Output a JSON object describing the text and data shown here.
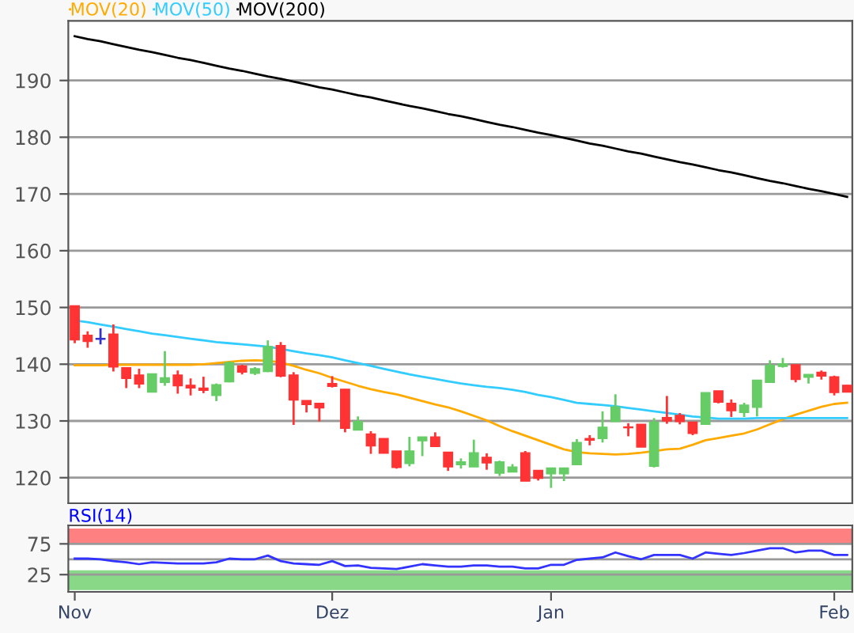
{
  "chart_data": [
    {
      "type": "candlestick",
      "categories": [
        null,
        null,
        null,
        null,
        null,
        null,
        null,
        null,
        null,
        null,
        null,
        null,
        null,
        null,
        null,
        null,
        null,
        null,
        null,
        null,
        null,
        null,
        null,
        null,
        null,
        null,
        null,
        null,
        null,
        null,
        null,
        null,
        null,
        null,
        null,
        null,
        null,
        null,
        null,
        null,
        null,
        null,
        null,
        null,
        null,
        null,
        null,
        null,
        null,
        null,
        null,
        null,
        null,
        null,
        null,
        null,
        null,
        null,
        null,
        null,
        null
      ],
      "ohlc": [
        [
          150.3,
          150.3,
          143.7,
          144.3
        ],
        [
          145.1,
          145.8,
          142.9,
          144.0
        ],
        [
          144.4,
          146.3,
          143.5,
          144.4
        ],
        [
          145.3,
          147.0,
          138.7,
          139.5
        ],
        [
          139.4,
          139.4,
          135.8,
          137.5
        ],
        [
          138.1,
          139.2,
          135.8,
          136.5
        ],
        [
          135.1,
          138.3,
          135.1,
          138.3
        ],
        [
          136.8,
          142.3,
          136.2,
          137.6
        ],
        [
          138.1,
          138.9,
          134.8,
          136.2
        ],
        [
          136.3,
          137.5,
          134.5,
          135.8
        ],
        [
          135.8,
          137.8,
          134.9,
          135.4
        ],
        [
          134.5,
          136.6,
          133.5,
          136.4
        ],
        [
          136.9,
          140.5,
          136.8,
          140.3
        ],
        [
          139.7,
          139.9,
          138.2,
          138.6
        ],
        [
          138.4,
          139.5,
          138.1,
          139.2
        ],
        [
          138.7,
          144.2,
          138.6,
          143.1
        ],
        [
          143.3,
          143.9,
          137.7,
          137.9
        ],
        [
          138.1,
          138.6,
          129.3,
          133.7
        ],
        [
          133.6,
          133.6,
          131.5,
          132.9
        ],
        [
          133.1,
          133.1,
          129.9,
          132.3
        ],
        [
          136.6,
          137.9,
          135.9,
          136.1
        ],
        [
          135.6,
          135.6,
          128.0,
          128.7
        ],
        [
          128.4,
          130.8,
          128.4,
          129.9
        ],
        [
          127.7,
          128.2,
          124.2,
          125.6
        ],
        [
          126.9,
          126.9,
          124.3,
          124.3
        ],
        [
          124.7,
          124.7,
          121.6,
          121.8
        ],
        [
          122.5,
          127.2,
          122.0,
          124.7
        ],
        [
          126.5,
          127.2,
          123.8,
          127.2
        ],
        [
          127.2,
          128.0,
          125.5,
          125.5
        ],
        [
          124.5,
          124.5,
          121.2,
          121.9
        ],
        [
          122.3,
          123.4,
          121.6,
          122.8
        ],
        [
          121.9,
          126.7,
          121.9,
          124.4
        ],
        [
          123.6,
          124.3,
          121.4,
          122.6
        ],
        [
          120.8,
          123.0,
          120.3,
          122.8
        ],
        [
          121.0,
          122.4,
          121.0,
          121.9
        ],
        [
          124.4,
          124.7,
          119.4,
          119.4
        ],
        [
          121.3,
          121.3,
          119.5,
          119.9
        ],
        [
          120.7,
          121.7,
          118.2,
          121.7
        ],
        [
          120.7,
          121.7,
          119.4,
          121.7
        ],
        [
          122.3,
          126.8,
          122.3,
          126.2
        ],
        [
          126.9,
          127.5,
          125.7,
          126.6
        ],
        [
          126.9,
          131.7,
          126.2,
          128.9
        ],
        [
          129.9,
          134.7,
          129.9,
          132.5
        ],
        [
          128.9,
          129.6,
          127.3,
          128.8
        ],
        [
          129.4,
          129.4,
          125.4,
          125.4
        ],
        [
          122.0,
          130.5,
          121.8,
          129.8
        ],
        [
          130.6,
          134.4,
          129.5,
          130.0
        ],
        [
          131.0,
          131.4,
          129.4,
          129.9
        ],
        [
          129.8,
          129.8,
          127.5,
          127.8
        ],
        [
          129.4,
          135.0,
          129.4,
          135.0
        ],
        [
          135.3,
          135.3,
          133.1,
          133.3
        ],
        [
          133.1,
          133.8,
          130.7,
          131.8
        ],
        [
          131.5,
          133.2,
          130.7,
          132.8
        ],
        [
          132.4,
          137.2,
          130.8,
          137.2
        ],
        [
          136.8,
          140.7,
          136.8,
          139.8
        ],
        [
          139.6,
          141.1,
          139.4,
          140.1
        ],
        [
          139.9,
          139.9,
          136.8,
          137.3
        ],
        [
          137.7,
          138.2,
          136.6,
          138.2
        ],
        [
          138.6,
          138.9,
          137.3,
          137.9
        ],
        [
          137.8,
          138.0,
          134.5,
          135.0
        ],
        [
          136.3,
          136.3,
          135.1,
          135.1
        ]
      ],
      "colors": [
        "#ff3333",
        "#ff3333",
        "#3333cc",
        "#ff3333",
        "#ff3333",
        "#ff3333",
        "#66cc66",
        "#66cc66",
        "#ff3333",
        "#ff3333",
        "#ff3333",
        "#66cc66",
        "#66cc66",
        "#ff3333",
        "#66cc66",
        "#66cc66",
        "#ff3333",
        "#ff3333",
        "#ff3333",
        "#ff3333",
        "#ff3333",
        "#ff3333",
        "#66cc66",
        "#ff3333",
        "#ff3333",
        "#ff3333",
        "#66cc66",
        "#66cc66",
        "#ff3333",
        "#ff3333",
        "#66cc66",
        "#66cc66",
        "#ff3333",
        "#66cc66",
        "#66cc66",
        "#ff3333",
        "#ff3333",
        "#66cc66",
        "#66cc66",
        "#66cc66",
        "#ff3333",
        "#66cc66",
        "#66cc66",
        "#ff3333",
        "#ff3333",
        "#66cc66",
        "#ff3333",
        "#ff3333",
        "#ff3333",
        "#66cc66",
        "#ff3333",
        "#ff3333",
        "#66cc66",
        "#66cc66",
        "#66cc66",
        "#66cc66",
        "#ff3333",
        "#66cc66",
        "#ff3333",
        "#ff3333",
        "#ff3333"
      ],
      "series": [
        {
          "type": "line",
          "name": "MOV(20)",
          "color": "#ffaa00",
          "values": [
            139.8,
            139.8,
            139.8,
            139.9,
            139.9,
            139.9,
            139.9,
            139.9,
            139.9,
            139.9,
            140.0,
            140.2,
            140.4,
            140.6,
            140.7,
            140.6,
            140.3,
            139.7,
            139.0,
            138.4,
            137.6,
            136.9,
            136.2,
            135.6,
            135.1,
            134.7,
            134.1,
            133.5,
            132.9,
            132.4,
            131.7,
            130.9,
            130.1,
            129.1,
            128.2,
            127.4,
            126.6,
            125.8,
            125.0,
            124.5,
            124.3,
            124.2,
            124.1,
            124.2,
            124.4,
            124.7,
            125.0,
            125.1,
            125.8,
            126.6,
            127.0,
            127.4,
            127.8,
            128.5,
            129.4,
            130.3,
            131.1,
            131.8,
            132.5,
            133.0,
            133.2
          ]
        },
        {
          "type": "line",
          "name": "MOV(50)",
          "color": "#33ccff",
          "values": [
            147.7,
            147.4,
            147.0,
            146.6,
            146.2,
            145.8,
            145.4,
            145.1,
            144.8,
            144.5,
            144.2,
            143.9,
            143.7,
            143.5,
            143.3,
            143.1,
            142.7,
            142.3,
            141.9,
            141.6,
            141.2,
            140.7,
            140.2,
            139.7,
            139.2,
            138.7,
            138.2,
            137.8,
            137.4,
            137.0,
            136.6,
            136.3,
            136.0,
            135.8,
            135.5,
            135.1,
            134.6,
            134.2,
            133.7,
            133.2,
            133.0,
            132.8,
            132.6,
            132.3,
            132.0,
            131.7,
            131.4,
            131.1,
            130.8,
            130.6,
            130.4,
            130.4,
            130.4,
            130.5,
            130.5,
            130.5,
            130.5,
            130.5,
            130.5,
            130.5,
            130.5
          ]
        },
        {
          "type": "line",
          "name": "MOV(200)",
          "color": "#000000",
          "values": [
            197.8,
            197.3,
            196.9,
            196.4,
            195.9,
            195.4,
            195.0,
            194.5,
            194.0,
            193.6,
            193.1,
            192.6,
            192.1,
            191.7,
            191.2,
            190.7,
            190.3,
            189.8,
            189.3,
            188.8,
            188.4,
            187.9,
            187.4,
            187.0,
            186.5,
            186.0,
            185.5,
            185.1,
            184.6,
            184.1,
            183.7,
            183.2,
            182.7,
            182.2,
            181.8,
            181.3,
            180.8,
            180.4,
            179.9,
            179.4,
            178.9,
            178.5,
            178.0,
            177.5,
            177.1,
            176.6,
            176.1,
            175.6,
            175.2,
            174.7,
            174.2,
            173.8,
            173.3,
            172.8,
            172.3,
            171.9,
            171.4,
            170.9,
            170.5,
            170.0,
            169.5
          ]
        }
      ],
      "ylim": [
        115.5,
        200.5
      ],
      "yticks": [
        120,
        130,
        140,
        150,
        160,
        170,
        180,
        190
      ],
      "grid": "y",
      "legend": "top left",
      "tick_labels": "y"
    },
    {
      "type": "line",
      "title": "RSI(14)",
      "categories": [
        "Nov",
        null,
        null,
        null,
        null,
        null,
        null,
        null,
        null,
        null,
        null,
        null,
        null,
        null,
        null,
        null,
        null,
        null,
        null,
        null,
        "Dez",
        null,
        null,
        null,
        null,
        null,
        null,
        null,
        null,
        null,
        null,
        null,
        null,
        null,
        null,
        null,
        null,
        "Jan",
        null,
        null,
        null,
        null,
        null,
        null,
        null,
        null,
        null,
        null,
        null,
        null,
        null,
        null,
        null,
        null,
        null,
        null,
        null,
        null,
        null,
        "Feb",
        null
      ],
      "series": [
        {
          "color": "#3333ff",
          "values": [
            51,
            51,
            50,
            47,
            45,
            42,
            45,
            44,
            43,
            43,
            43,
            45,
            51,
            50,
            50,
            56,
            47,
            43,
            42,
            41,
            47,
            39,
            40,
            36,
            35,
            34,
            38,
            42,
            40,
            38,
            38,
            40,
            40,
            38,
            38,
            35,
            35,
            41,
            41,
            49,
            51,
            53,
            61,
            55,
            50,
            57,
            57,
            57,
            51,
            61,
            59,
            57,
            60,
            64,
            68,
            68,
            61,
            64,
            64,
            57,
            57
          ]
        }
      ],
      "ylim": [
        -3,
        105
      ],
      "yticks": [
        25,
        75
      ],
      "grid": "y",
      "bands": [
        {
          "axis": "y",
          "from": 75,
          "to": 100,
          "color": "#ff8080"
        },
        {
          "axis": "y",
          "from": 0,
          "to": 32,
          "color": "#88d888"
        }
      ],
      "ref_lines": [
        {
          "axis": "y",
          "value": 50,
          "color": "#999999"
        }
      ]
    }
  ]
}
